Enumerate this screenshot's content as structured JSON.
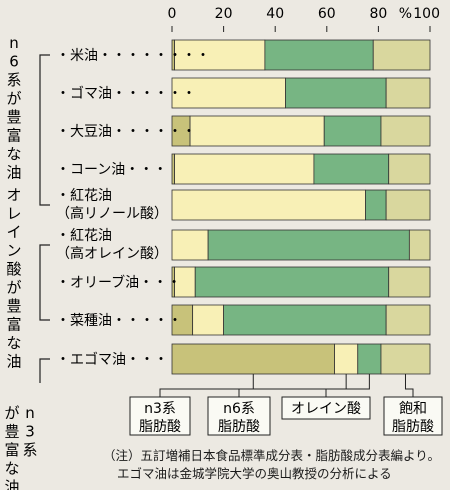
{
  "chart_data": {
    "type": "bar",
    "stacked": true,
    "orientation": "horizontal",
    "xlim": [
      0,
      100
    ],
    "x_ticks": [
      "0",
      "20",
      "40",
      "60",
      "80",
      "100"
    ],
    "x_unit": "%",
    "group_labels": [
      {
        "text": "n6系が豊富な油",
        "rows": [
          0,
          4
        ]
      },
      {
        "text": "オレイン酸が豊富な油",
        "rows": [
          5,
          7
        ]
      },
      {
        "text": "n3系が豊富な油",
        "rows": [
          8,
          8
        ]
      }
    ],
    "categories": [
      [
        "・米油・・・・・・・・"
      ],
      [
        "・ゴマ油・・・・・・"
      ],
      [
        "・大豆油・・・・・・"
      ],
      [
        "・コーン油・・・"
      ],
      [
        "・紅花油",
        "（高リノール酸）"
      ],
      [
        "・紅花油",
        "（高オレイン酸）"
      ],
      [
        "・オリーブ油・・・"
      ],
      [
        "・菜種油・・・・・"
      ],
      [
        "・エゴマ油・・・"
      ]
    ],
    "series": [
      {
        "name": "n3系脂肪酸",
        "values": [
          1,
          0,
          7,
          1,
          0,
          0,
          1,
          8,
          63
        ],
        "color": "#c8c27a"
      },
      {
        "name": "n6系脂肪酸",
        "values": [
          35,
          44,
          52,
          54,
          75,
          14,
          8,
          12,
          9
        ],
        "color": "#f8f0b6"
      },
      {
        "name": "オレイン酸",
        "values": [
          42,
          39,
          22,
          29,
          8,
          78,
          75,
          63,
          9
        ],
        "color": "#77b583"
      },
      {
        "name": "飽和脂肪酸",
        "values": [
          22,
          17,
          19,
          16,
          17,
          8,
          16,
          17,
          19
        ],
        "color": "#d9d79e"
      }
    ],
    "legend_labels": [
      [
        "n3系",
        "脂肪酸"
      ],
      [
        "n6系",
        "脂肪酸"
      ],
      [
        "オレイン酸"
      ],
      [
        "飽和",
        "脂肪酸"
      ]
    ]
  },
  "note": {
    "line1": "（注）五訂増補日本食品標準成分表・脂肪酸成分表編より。",
    "line2": "エゴマ油は金城学院大学の奥山教授の分析による"
  }
}
